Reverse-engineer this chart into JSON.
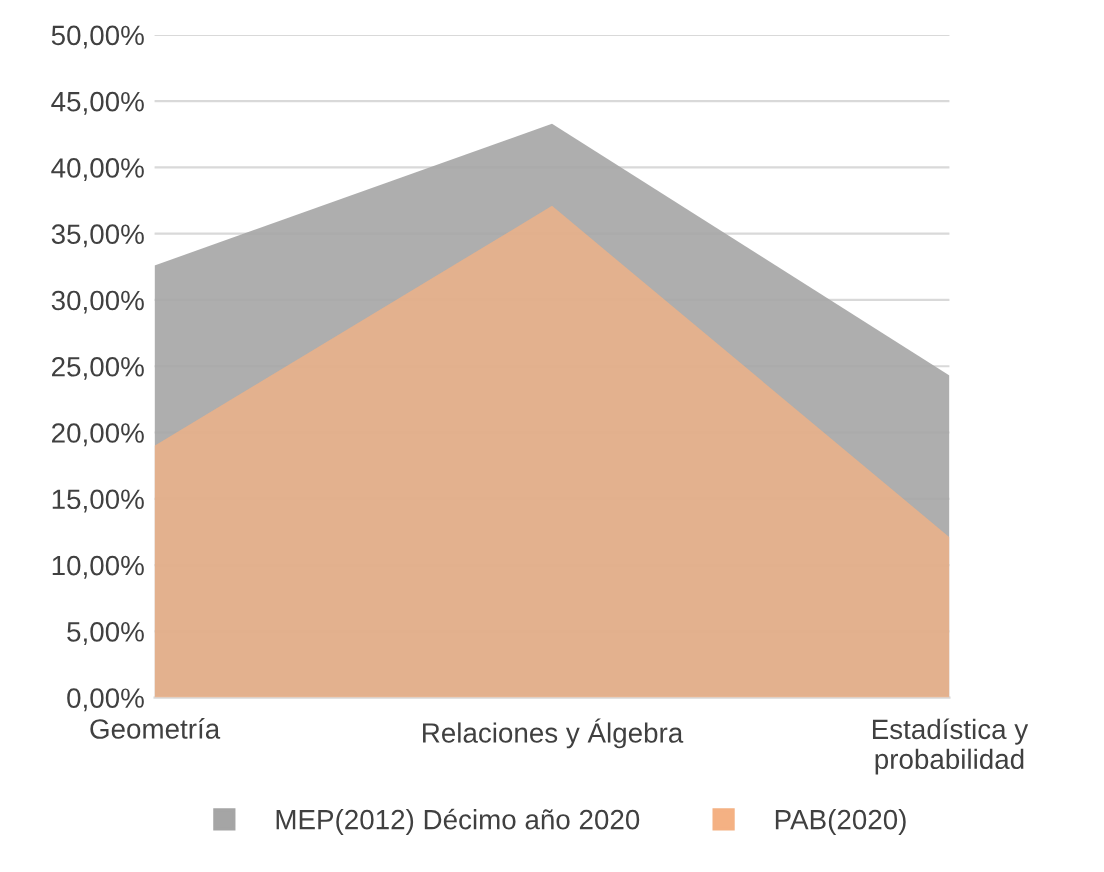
{
  "chart_data": {
    "type": "area",
    "categories": [
      "Geometría",
      "Relaciones y Álgebra",
      "Estadística y\nprobabilidad"
    ],
    "series": [
      {
        "name": "MEP(2012) Décimo año 2020",
        "color": "#a5a5a5",
        "values": [
          32.6,
          43.3,
          24.3
        ]
      },
      {
        "name": "PAB(2020)",
        "color": "#f4b183",
        "values": [
          19.0,
          37.1,
          12.1
        ]
      }
    ],
    "ylim": [
      0,
      50
    ],
    "yticks": [
      {
        "value": 0,
        "label": "0,00%"
      },
      {
        "value": 5,
        "label": "5,00%"
      },
      {
        "value": 10,
        "label": "10,00%"
      },
      {
        "value": 15,
        "label": "15,00%"
      },
      {
        "value": 20,
        "label": "20,00%"
      },
      {
        "value": 25,
        "label": "25,00%"
      },
      {
        "value": 30,
        "label": "30,00%"
      },
      {
        "value": 35,
        "label": "35,00%"
      },
      {
        "value": 40,
        "label": "40,00%"
      },
      {
        "value": 45,
        "label": "45,00%"
      },
      {
        "value": 50,
        "label": "50,00%"
      }
    ],
    "grid": "y",
    "legend": "bottom"
  }
}
